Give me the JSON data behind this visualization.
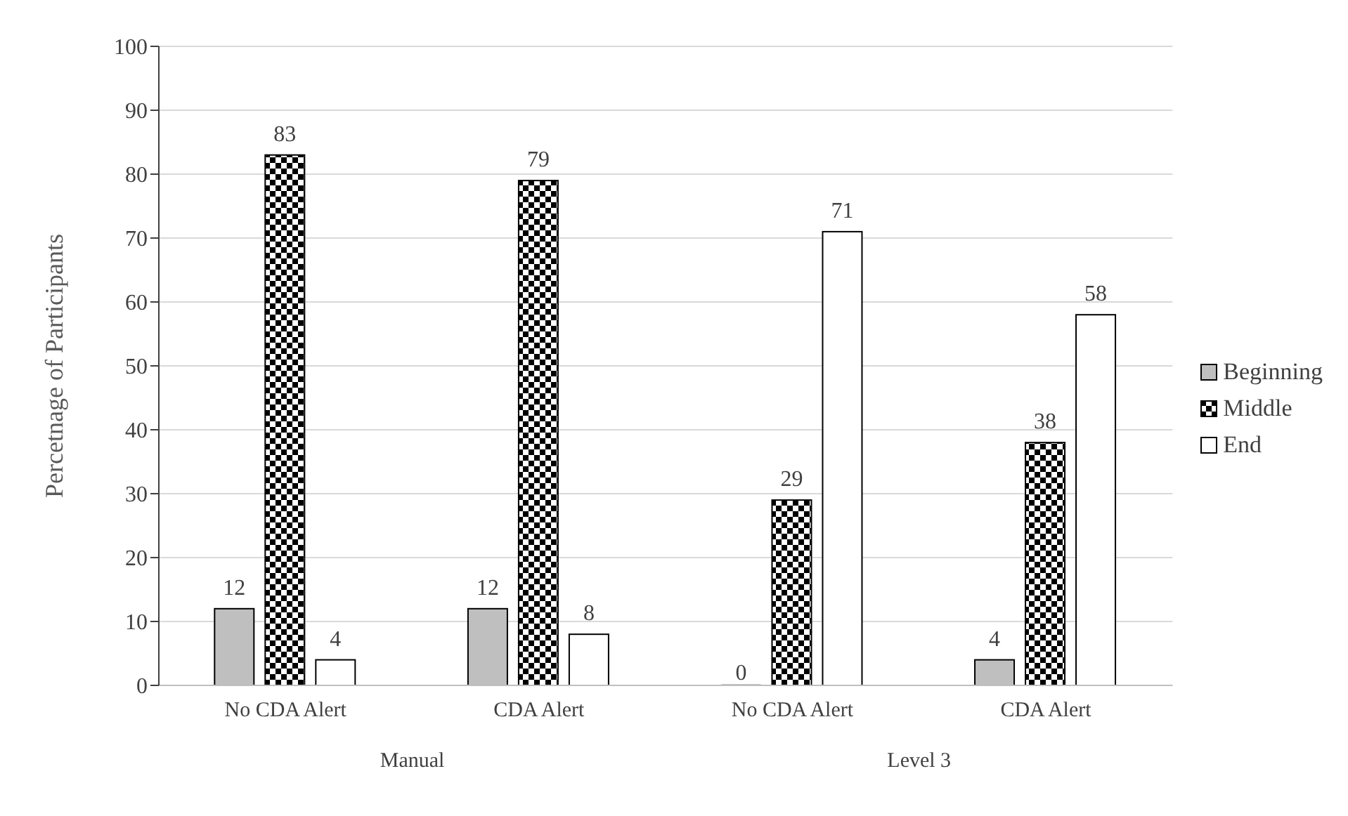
{
  "chart_data": {
    "type": "bar",
    "ylabel": "Percetnage of Participants",
    "categories": [
      "No CDA Alert",
      "CDA Alert",
      "No CDA Alert",
      "CDA Alert"
    ],
    "annotations": [
      "Manual",
      "Level 3"
    ],
    "series": [
      {
        "name": "Beginning",
        "color": "#bfbfbf",
        "values": [
          12,
          12,
          0,
          4
        ]
      },
      {
        "name": "Middle",
        "color": "#000000",
        "values": [
          83,
          79,
          29,
          38
        ]
      },
      {
        "name": "End",
        "color": "#ffffff",
        "values": [
          4,
          8,
          71,
          58
        ]
      }
    ],
    "ylim": [
      0,
      100
    ],
    "yticks": [
      0,
      10,
      20,
      30,
      40,
      50,
      60,
      70,
      80,
      90,
      100
    ],
    "grid": "y",
    "legend": "right",
    "data_labels": true
  }
}
